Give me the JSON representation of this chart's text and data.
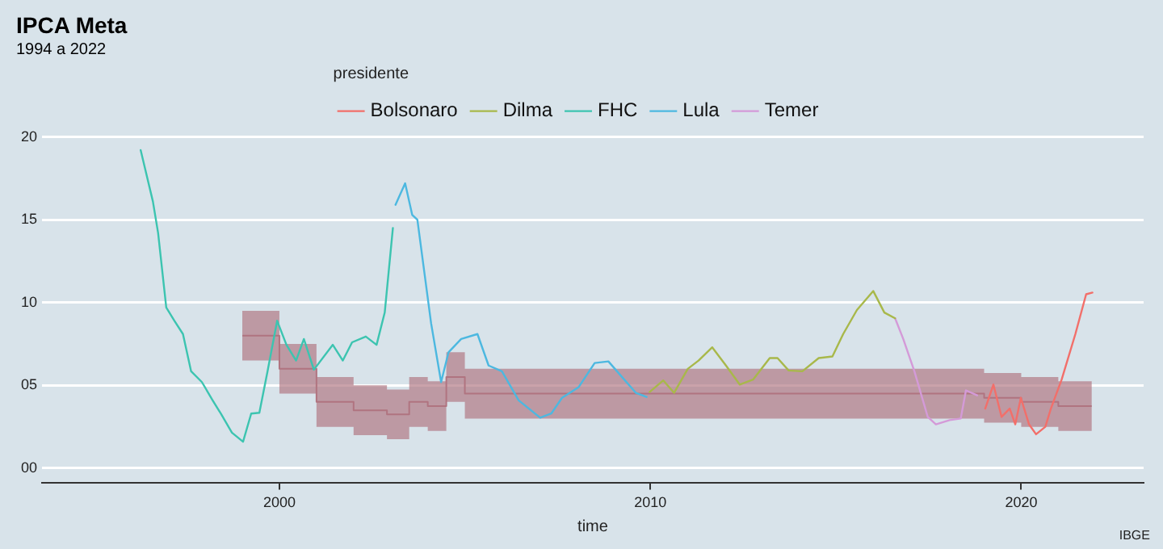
{
  "chart_data": {
    "type": "line",
    "title": "IPCA Meta",
    "subtitle": "1994 a 2022",
    "xlabel": "time",
    "legend_title": "presidente",
    "legend": "top",
    "grid": "y",
    "annotations": [
      "IBGE"
    ],
    "xlim": [
      1993.6,
      2023.3
    ],
    "xticks": [
      2000,
      2010,
      2020
    ],
    "ylim": [
      -0.9,
      20
    ],
    "yticks": [
      {
        "value": 0,
        "label": "00"
      },
      {
        "value": 5,
        "label": "05"
      },
      10,
      15,
      20
    ],
    "series": [
      {
        "name": "Bolsonaro",
        "color": "#f26f6a",
        "x": [
          2019.03,
          2019.25,
          2019.47,
          2019.69,
          2019.84,
          2019.99,
          2020.21,
          2020.4,
          2020.65,
          2020.8,
          2021.09,
          2021.46,
          2021.75,
          2021.92
        ],
        "values": [
          3.6,
          5.05,
          3.1,
          3.6,
          2.65,
          4.25,
          2.65,
          2.05,
          2.5,
          3.6,
          5.35,
          8.1,
          10.5,
          10.6
        ]
      },
      {
        "name": "Dilma",
        "color": "#a8b84a",
        "x": [
          2009.98,
          2010.35,
          2010.64,
          2011.01,
          2011.3,
          2011.67,
          2012.04,
          2012.41,
          2012.77,
          2013.22,
          2013.43,
          2013.73,
          2014.1,
          2014.54,
          2014.91,
          2015.2,
          2015.57,
          2016.01,
          2016.31,
          2016.6
        ],
        "values": [
          4.6,
          5.3,
          4.55,
          6.0,
          6.5,
          7.3,
          6.2,
          5.05,
          5.35,
          6.65,
          6.65,
          5.9,
          5.85,
          6.65,
          6.75,
          8.1,
          9.55,
          10.7,
          9.4,
          9.05
        ]
      },
      {
        "name": "FHC",
        "color": "#3cc4b0",
        "x": [
          1996.26,
          1996.59,
          1996.73,
          1996.95,
          1997.17,
          1997.4,
          1997.62,
          1997.91,
          1998.2,
          1998.42,
          1998.72,
          1999.02,
          1999.24,
          1999.46,
          1999.68,
          1999.94,
          2000.19,
          2000.45,
          2000.66,
          2000.93,
          2001.44,
          2001.71,
          2001.96,
          2002.33,
          2002.62,
          2002.84,
          2003.06
        ],
        "values": [
          19.2,
          16.1,
          14.2,
          9.7,
          8.9,
          8.1,
          5.85,
          5.2,
          4.1,
          3.3,
          2.15,
          1.6,
          3.3,
          3.35,
          5.85,
          8.9,
          7.45,
          6.5,
          7.8,
          5.95,
          7.45,
          6.5,
          7.6,
          7.95,
          7.45,
          9.4,
          14.5
        ]
      },
      {
        "name": "Lula",
        "color": "#4cb8e0",
        "x": [
          2003.13,
          2003.39,
          2003.58,
          2003.72,
          2004.09,
          2004.36,
          2004.56,
          2004.9,
          2005.34,
          2005.64,
          2006.0,
          2006.45,
          2007.03,
          2007.33,
          2007.62,
          2008.07,
          2008.5,
          2008.87,
          2009.24,
          2009.61,
          2009.9
        ],
        "values": [
          15.9,
          17.2,
          15.3,
          15.0,
          8.75,
          5.2,
          7.0,
          7.8,
          8.1,
          6.2,
          5.85,
          4.1,
          3.05,
          3.3,
          4.25,
          4.9,
          6.35,
          6.45,
          5.5,
          4.55,
          4.3
        ]
      },
      {
        "name": "Temer",
        "color": "#d49ad8",
        "x": [
          2016.6,
          2016.82,
          2017.12,
          2017.48,
          2017.7,
          2018.07,
          2018.37,
          2018.51,
          2018.81
        ],
        "values": [
          9.05,
          7.8,
          5.85,
          3.1,
          2.65,
          2.9,
          3.0,
          4.7,
          4.4
        ]
      },
      {
        "type": "step",
        "color": "#b07480",
        "x": [
          1999.0,
          2000.0,
          2001.0,
          2002.0,
          2002.9,
          2003.5,
          2004.0,
          2004.5,
          2005.0,
          2019.0,
          2020.0,
          2021.0,
          2021.9
        ],
        "values": [
          8,
          6,
          4,
          3.5,
          3.25,
          4,
          3.75,
          5.5,
          4.5,
          4.25,
          4,
          3.75,
          3.75
        ],
        "lower": [
          6.5,
          4.5,
          2.5,
          2,
          1.75,
          2.5,
          2.25,
          4,
          3,
          2.75,
          2.5,
          2.25,
          2.25
        ],
        "upper": [
          9.5,
          7.5,
          5.5,
          5,
          4.75,
          5.5,
          5.25,
          7,
          6,
          5.75,
          5.5,
          5.25,
          5.25
        ]
      }
    ]
  }
}
